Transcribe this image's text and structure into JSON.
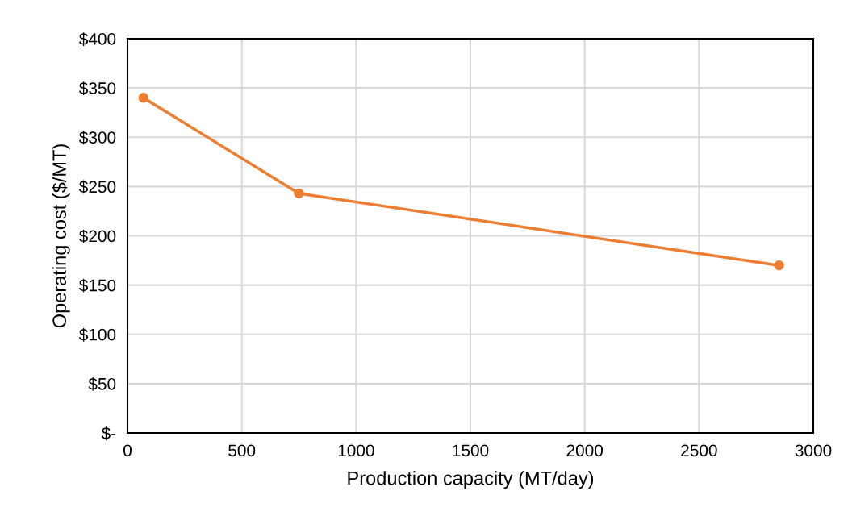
{
  "chart_data": {
    "type": "line",
    "x": [
      70,
      750,
      2850
    ],
    "series": [
      {
        "color": "#ed7d31",
        "values": [
          340,
          243,
          170
        ]
      }
    ],
    "xlabel": "Production capacity (MT/day)",
    "ylabel": "Operating cost ($/MT)",
    "xlim": [
      0,
      3000
    ],
    "xticks": [
      0,
      500,
      1000,
      1500,
      2000,
      2500,
      3000
    ],
    "ylim": [
      0,
      400
    ],
    "yticks": [
      {
        "value": 0,
        "label": "$-"
      },
      {
        "value": 50,
        "label": "$50"
      },
      {
        "value": 100,
        "label": "$100"
      },
      {
        "value": 150,
        "label": "$150"
      },
      {
        "value": 200,
        "label": "$200"
      },
      {
        "value": 250,
        "label": "$250"
      },
      {
        "value": 300,
        "label": "$300"
      },
      {
        "value": 350,
        "label": "$350"
      },
      {
        "value": 400,
        "label": "$400"
      }
    ],
    "grid": true,
    "marker": "circle",
    "line_style": "solid"
  }
}
